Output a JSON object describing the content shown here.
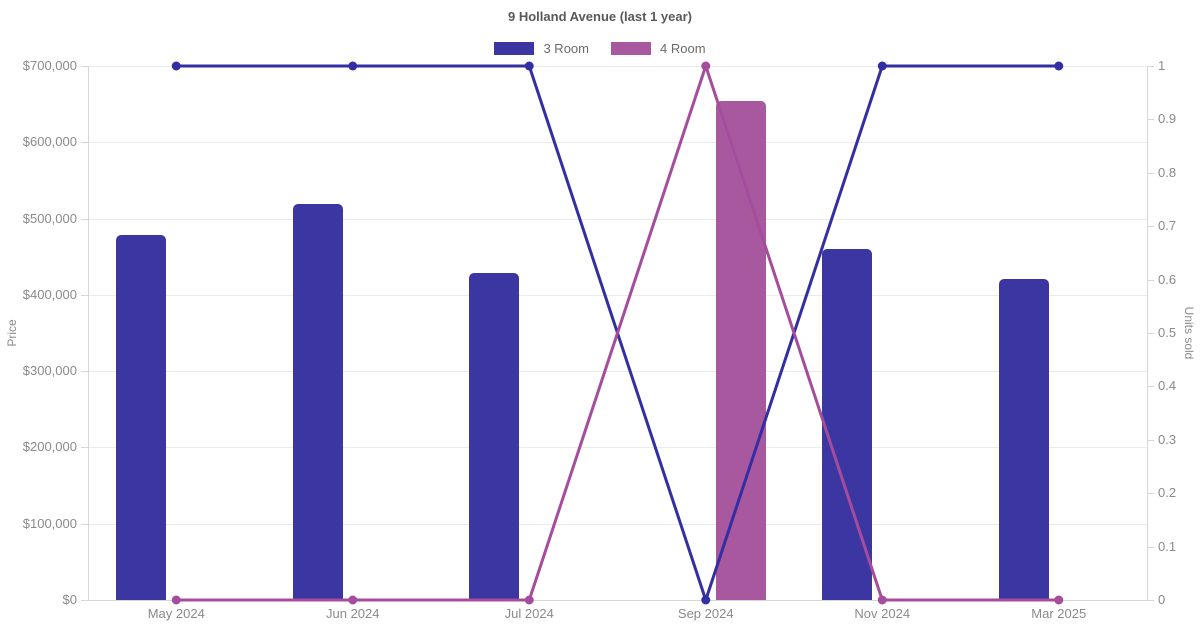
{
  "chart_data": {
    "type": "bar",
    "subtype": "grouped-bar-with-lines",
    "title": "9 Holland Avenue (last 1 year)",
    "categories": [
      "May 2024",
      "Jun 2024",
      "Jul 2024",
      "Sep 2024",
      "Nov 2024",
      "Mar 2025"
    ],
    "series": [
      {
        "name": "3 Room",
        "type": "bar",
        "axis": "left",
        "color": "#3b36a2",
        "values": [
          478000,
          519000,
          429000,
          null,
          460000,
          421000
        ]
      },
      {
        "name": "4 Room",
        "type": "bar",
        "axis": "left",
        "color": "#a7589f",
        "values": [
          null,
          null,
          null,
          654000,
          null,
          null
        ]
      },
      {
        "name": "3 Room",
        "type": "line",
        "axis": "right",
        "color": "#342ea3",
        "values": [
          1,
          1,
          1,
          0,
          1,
          1
        ]
      },
      {
        "name": "4 Room",
        "type": "line",
        "axis": "right",
        "color": "#a44d9c",
        "values": [
          0,
          0,
          0,
          1,
          0,
          0
        ]
      }
    ],
    "left_axis": {
      "label": "Price",
      "min": 0,
      "max": 700000,
      "step": 100000,
      "tick_prefix": "$",
      "tick_labels": [
        "$0",
        "$100,000",
        "$200,000",
        "$300,000",
        "$400,000",
        "$500,000",
        "$600,000",
        "$700,000"
      ]
    },
    "right_axis": {
      "label": "Units sold",
      "min": 0,
      "max": 1,
      "step": 0.1,
      "tick_labels": [
        "0",
        "0.1",
        "0.2",
        "0.3",
        "0.4",
        "0.5",
        "0.6",
        "0.7",
        "0.8",
        "0.9",
        "1"
      ]
    },
    "legend": [
      {
        "label": "3 Room",
        "color": "#3b36a2"
      },
      {
        "label": "4 Room",
        "color": "#a7589f"
      }
    ],
    "grid": "horizontal-only",
    "legend_position": "top-center"
  }
}
